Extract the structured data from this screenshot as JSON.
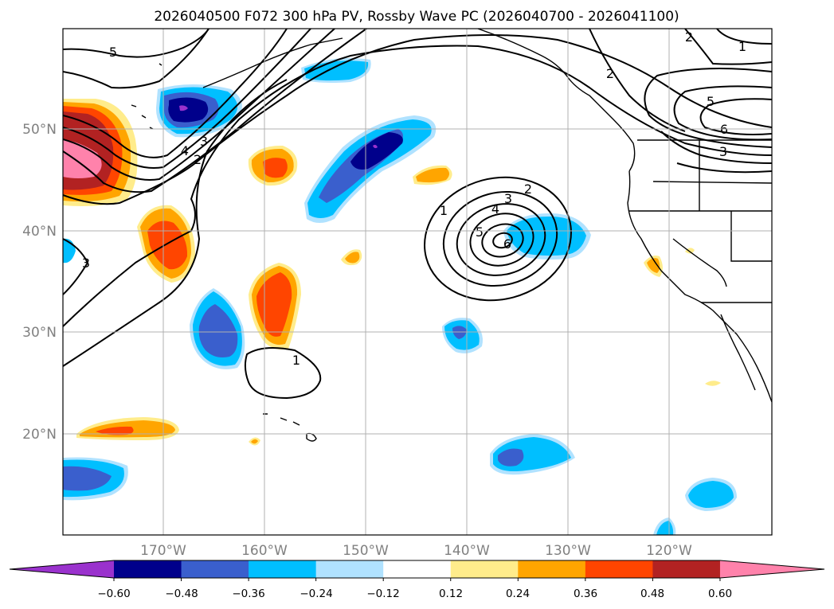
{
  "title": "2026040500 F072 300 hPa PV, Rossby Wave PC (2026040700 - 2026041100)",
  "lat_labels": [
    "50°N",
    "40°N",
    "30°N",
    "20°N"
  ],
  "lon_labels": [
    "170°W",
    "160°W",
    "150°W",
    "140°W",
    "130°W",
    "120°W"
  ],
  "colorbar": {
    "ticks": [
      "−0.60",
      "−0.48",
      "−0.36",
      "−0.24",
      "−0.12",
      "0.12",
      "0.24",
      "0.36",
      "0.48",
      "0.60"
    ],
    "colors": [
      "#9a32cd",
      "#00008b",
      "#3a5fcd",
      "#00bfff",
      "#b0e2ff",
      "#ffffff",
      "#ffec8b",
      "#ffa500",
      "#ff4500",
      "#b22222",
      "#ff82ab"
    ]
  },
  "contour_labels": [
    "5",
    "2",
    "1",
    "2",
    "5",
    "6",
    "3",
    "4",
    "3",
    "2",
    "3",
    "1",
    "2",
    "3",
    "4",
    "5",
    "6",
    "1"
  ]
}
